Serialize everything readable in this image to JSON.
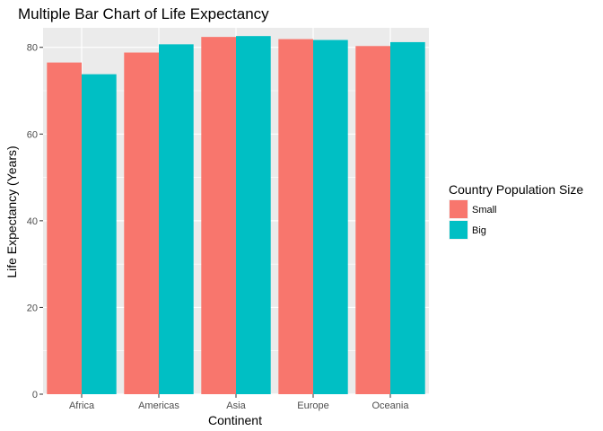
{
  "chart_data": {
    "type": "bar",
    "title": "Multiple Bar Chart of Life Expectancy",
    "xlabel": "Continent",
    "ylabel": "Life Expectancy (Years)",
    "categories": [
      "Africa",
      "Americas",
      "Asia",
      "Europe",
      "Oceania"
    ],
    "series": [
      {
        "name": "Small",
        "color": "#F8766D",
        "values": [
          76.5,
          78.8,
          82.4,
          81.9,
          80.3
        ]
      },
      {
        "name": "Big",
        "color": "#00BFC4",
        "values": [
          73.8,
          80.7,
          82.6,
          81.7,
          81.2
        ]
      }
    ],
    "ylim": [
      0,
      84.5
    ],
    "y_ticks": [
      0,
      20,
      40,
      60,
      80
    ],
    "grid": true,
    "legend": {
      "title": "Country Population Size",
      "position": "right"
    },
    "colors": {
      "panel_background": "#EBEBEB",
      "grid": "#FFFFFF",
      "tick_text": "#4D4D4D"
    }
  }
}
